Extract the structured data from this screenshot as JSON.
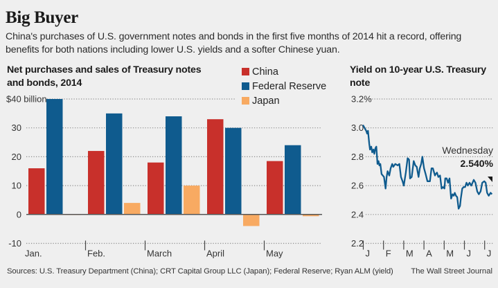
{
  "header": {
    "title": "Big Buyer",
    "subtitle": "China's purchases of U.S. government notes and bonds in the first five months of 2014 hit a record, offering benefits for both nations including lower U.S. yields and a softer Chinese  yuan."
  },
  "footer": {
    "sources": "Sources: U.S. Treasury Department (China); CRT Capital Group LLC (Japan); Federal Reserve; Ryan ALM (yield)",
    "credit": "The Wall Street Journal"
  },
  "colors": {
    "china": "#c8302b",
    "fed": "#0f5b8e",
    "japan": "#f8aa62",
    "yield_line": "#0f5b8e",
    "grid": "#8a8a8a",
    "axis": "#555555"
  },
  "chart_data": [
    {
      "type": "bar",
      "title": "Net purchases and sales of Treasury notes and bonds, 2014",
      "xlabel": "",
      "ylabel": "",
      "categories": [
        "Jan.",
        "Feb.",
        "March",
        "April",
        "May"
      ],
      "series": [
        {
          "name": "China",
          "color_key": "china",
          "values": [
            16,
            22,
            18,
            33,
            18.5
          ]
        },
        {
          "name": "Federal Reserve",
          "color_key": "fed",
          "values": [
            40,
            35,
            34,
            30,
            24
          ]
        },
        {
          "name": "Japan",
          "color_key": "japan",
          "values": [
            0,
            4,
            10,
            -4,
            -0.6
          ]
        }
      ],
      "ylim": [
        -10,
        40
      ],
      "yticks": [
        40,
        30,
        20,
        10,
        0,
        -10
      ],
      "ytick_labels": [
        "$40 billion",
        "30",
        "20",
        "10",
        "0",
        "-10"
      ],
      "grid": true,
      "legend": "top-right",
      "legend_entries": [
        "China",
        "Federal Reserve",
        "Japan"
      ]
    },
    {
      "type": "line",
      "title": "Yield on 10-year U.S. Treasury note",
      "xlabel": "",
      "ylabel": "",
      "x_ticks": [
        "J",
        "F",
        "M",
        "A",
        "M",
        "J",
        "J"
      ],
      "ylim": [
        2.2,
        3.2
      ],
      "yticks": [
        3.2,
        3.0,
        2.8,
        2.6,
        2.4,
        2.2
      ],
      "ytick_labels": [
        "3.2%",
        "3.0",
        "2.8",
        "2.6",
        "2.4",
        "2.2"
      ],
      "grid": true,
      "annotation": {
        "label": "Wednesday",
        "value_label": "2.540%",
        "value": 2.54
      },
      "series": [
        {
          "name": "10-year yield",
          "x_months": [
            0.0,
            0.08,
            0.16,
            0.21,
            0.25,
            0.31,
            0.35,
            0.41,
            0.46,
            0.52,
            0.56,
            0.62,
            0.66,
            0.72,
            0.77,
            0.81,
            0.86,
            0.92,
            1.04,
            1.12,
            1.17,
            1.22,
            1.3,
            1.37,
            1.45,
            1.5,
            1.6,
            1.72,
            1.8,
            1.88,
            1.96,
            2.02,
            2.12,
            2.21,
            2.28,
            2.33,
            2.41,
            2.51,
            2.59,
            2.66,
            2.75,
            2.81,
            2.88,
            2.94,
            3.02,
            3.1,
            3.19,
            3.24,
            3.31,
            3.39,
            3.46,
            3.56,
            3.6,
            3.66,
            3.73,
            3.81,
            3.89,
            3.96,
            4.03,
            4.07,
            4.14,
            4.21,
            4.28,
            4.36,
            4.43,
            4.49,
            4.54,
            4.6,
            4.66,
            4.73,
            4.8,
            4.84,
            4.91,
            4.98,
            5.05,
            5.12,
            5.19,
            5.27,
            5.36,
            5.48,
            5.56,
            5.65,
            5.73,
            5.82,
            5.9,
            6.0,
            6.07,
            6.14,
            6.22,
            6.31,
            6.38
          ],
          "values": [
            3.02,
            3.0,
            2.98,
            2.96,
            2.98,
            2.89,
            2.85,
            2.87,
            2.83,
            2.85,
            2.82,
            2.86,
            2.87,
            2.75,
            2.77,
            2.74,
            2.75,
            2.68,
            2.66,
            2.58,
            2.66,
            2.7,
            2.67,
            2.72,
            2.75,
            2.73,
            2.75,
            2.74,
            2.75,
            2.66,
            2.63,
            2.6,
            2.69,
            2.79,
            2.78,
            2.65,
            2.66,
            2.77,
            2.74,
            2.73,
            2.66,
            2.72,
            2.75,
            2.8,
            2.72,
            2.68,
            2.63,
            2.63,
            2.63,
            2.72,
            2.72,
            2.67,
            2.68,
            2.69,
            2.66,
            2.67,
            2.58,
            2.59,
            2.58,
            2.65,
            2.65,
            2.62,
            2.65,
            2.51,
            2.54,
            2.53,
            2.55,
            2.53,
            2.52,
            2.44,
            2.46,
            2.51,
            2.58,
            2.59,
            2.59,
            2.62,
            2.6,
            2.62,
            2.6,
            2.64,
            2.62,
            2.56,
            2.54,
            2.56,
            2.62,
            2.63,
            2.62,
            2.55,
            2.53,
            2.55,
            2.54
          ]
        }
      ]
    }
  ]
}
